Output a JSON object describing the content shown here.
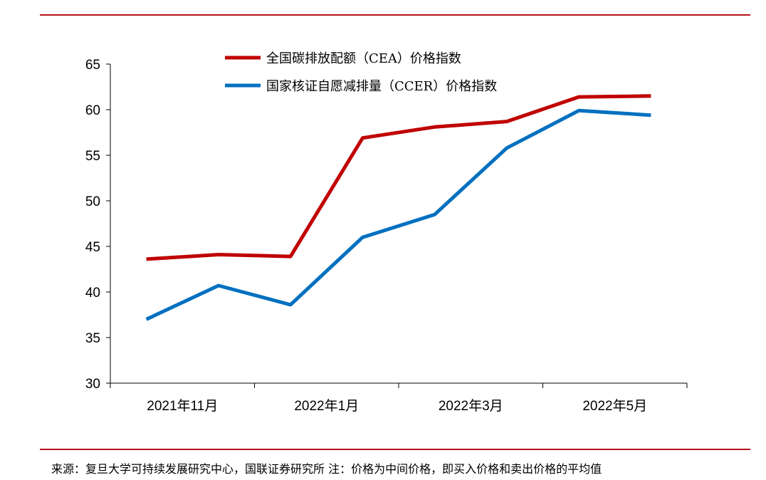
{
  "colors": {
    "rule": "#b5121b",
    "cea": "#c00000",
    "ccer": "#0070c0",
    "axis": "#000000"
  },
  "source_text": "来源：复旦大学可持续发展研究中心，国联证券研究所 注：价格为中间价格，即买入价格和卖出价格的平均值",
  "chart_data": {
    "type": "line",
    "x": [
      "2021年11月",
      "2021年12月",
      "2022年1月",
      "2022年2月",
      "2022年3月",
      "2022年4月",
      "2022年5月",
      "2022年6月"
    ],
    "x_tick_labels": [
      "2021年11月",
      "2022年1月",
      "2022年3月",
      "2022年5月"
    ],
    "ylim": [
      30,
      65
    ],
    "y_ticks": [
      30,
      35,
      40,
      45,
      50,
      55,
      60,
      65
    ],
    "legend_position": "top",
    "grid": false,
    "series": [
      {
        "name": "全国碳排放配额（CEA）价格指数",
        "color": "#c00000",
        "values": [
          43.6,
          44.1,
          43.9,
          56.9,
          58.1,
          58.7,
          61.4,
          61.5
        ]
      },
      {
        "name": "国家核证自愿减排量（CCER）价格指数",
        "color": "#0070c0",
        "values": [
          37.0,
          40.7,
          38.6,
          46.0,
          48.5,
          55.8,
          59.9,
          59.4
        ]
      }
    ]
  }
}
